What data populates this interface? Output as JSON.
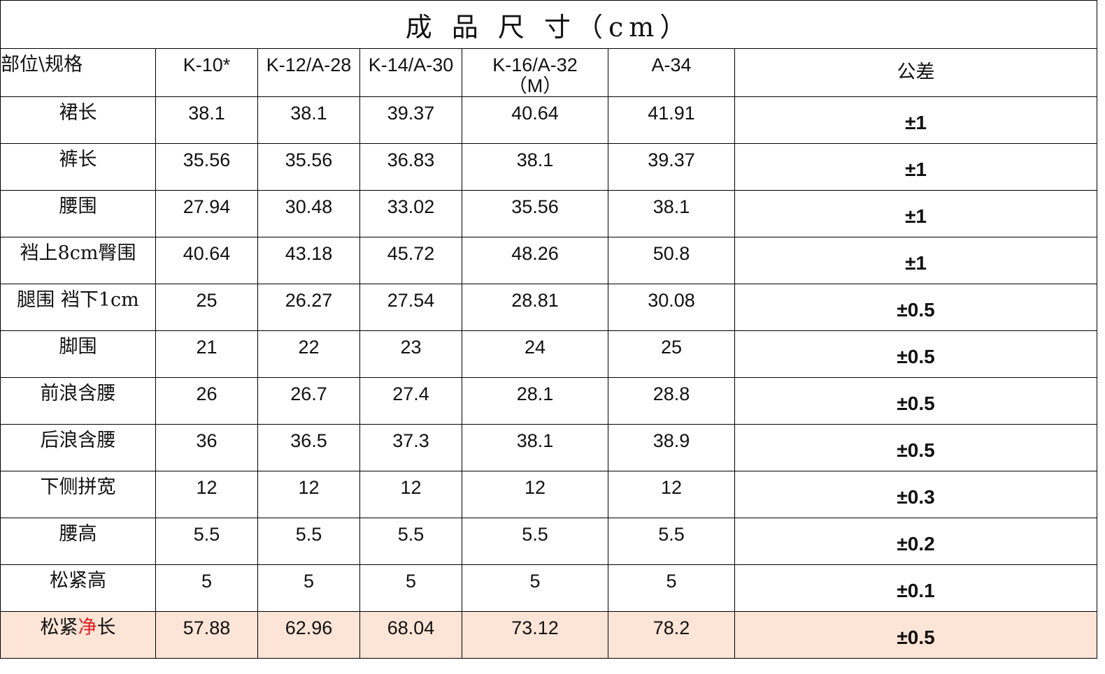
{
  "title": "成 品 尺 寸（cm）",
  "table": {
    "header": [
      "部位\\规格",
      "K-10*",
      "K-12/A-28",
      "K-14/A-30",
      "K-16/A-32（M）",
      "A-34",
      "公差"
    ],
    "rows": [
      {
        "label": "裙长",
        "values": [
          38.1,
          38.1,
          39.37,
          40.64,
          41.91
        ],
        "tolerance": "±1"
      },
      {
        "label": "裤长",
        "values": [
          35.56,
          35.56,
          36.83,
          38.1,
          39.37
        ],
        "tolerance": "±1"
      },
      {
        "label": "腰围",
        "values": [
          27.94,
          30.48,
          33.02,
          35.56,
          38.1
        ],
        "tolerance": "±1"
      },
      {
        "label": "裆上8cm臀围",
        "values": [
          40.64,
          43.18,
          45.72,
          48.26,
          50.8
        ],
        "tolerance": "±1"
      },
      {
        "label": "腿围  裆下1cm",
        "values": [
          25,
          26.27,
          27.54,
          28.81,
          30.08
        ],
        "tolerance": "±0.5"
      },
      {
        "label": "脚围",
        "values": [
          21,
          22,
          23,
          24,
          25
        ],
        "tolerance": "±0.5"
      },
      {
        "label": "前浪含腰",
        "values": [
          26,
          26.7,
          27.4,
          28.1,
          28.8
        ],
        "tolerance": "±0.5"
      },
      {
        "label": "后浪含腰",
        "values": [
          36,
          36.5,
          37.3,
          38.1,
          38.9
        ],
        "tolerance": "±0.5"
      },
      {
        "label": "下侧拼宽",
        "values": [
          12,
          12,
          12,
          12,
          12
        ],
        "tolerance": "±0.3"
      },
      {
        "label": "腰高",
        "values": [
          5.5,
          5.5,
          5.5,
          5.5,
          5.5
        ],
        "tolerance": "±0.2"
      },
      {
        "label": "松紧高",
        "values": [
          5,
          5,
          5,
          5,
          5
        ],
        "tolerance": "±0.1"
      },
      {
        "label": [
          "松紧",
          "净",
          "长"
        ],
        "values": [
          57.88,
          62.96,
          68.04,
          73.12,
          78.2
        ],
        "tolerance": "±0.5"
      }
    ]
  }
}
